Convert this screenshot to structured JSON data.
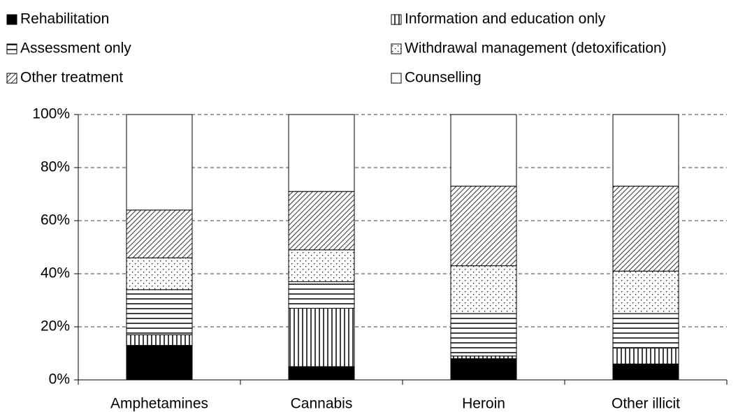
{
  "chart_data": {
    "type": "stacked_bar",
    "categories": [
      "Amphetamines",
      "Cannabis",
      "Heroin",
      "Other illicit"
    ],
    "series": [
      {
        "name": "Rehabilitation",
        "color": "#000000",
        "pattern": "solid",
        "values": [
          13,
          5,
          8,
          6
        ]
      },
      {
        "name": "Information and education only",
        "color": "#000000",
        "pattern": "vertical",
        "values": [
          4,
          22,
          1,
          6
        ]
      },
      {
        "name": "Assessment only",
        "color": "#000000",
        "pattern": "horizontal",
        "values": [
          17,
          10,
          16,
          13
        ]
      },
      {
        "name": "Withdrawal management (detoxification)",
        "color": "#000000",
        "pattern": "dots",
        "values": [
          12,
          12,
          18,
          16
        ]
      },
      {
        "name": "Other treatment",
        "color": "#000000",
        "pattern": "diagonal",
        "values": [
          18,
          22,
          30,
          32
        ]
      },
      {
        "name": "Counselling",
        "color": "#000000",
        "pattern": "none",
        "values": [
          36,
          29,
          27,
          27
        ]
      }
    ],
    "ylim": [
      0,
      100
    ],
    "yticks": [
      {
        "value": 0,
        "label": "0%"
      },
      {
        "value": 20,
        "label": "20%"
      },
      {
        "value": 40,
        "label": "40%"
      },
      {
        "value": 60,
        "label": "60%"
      },
      {
        "value": 80,
        "label": "80%"
      },
      {
        "value": 100,
        "label": "100%"
      }
    ],
    "grid": true
  }
}
